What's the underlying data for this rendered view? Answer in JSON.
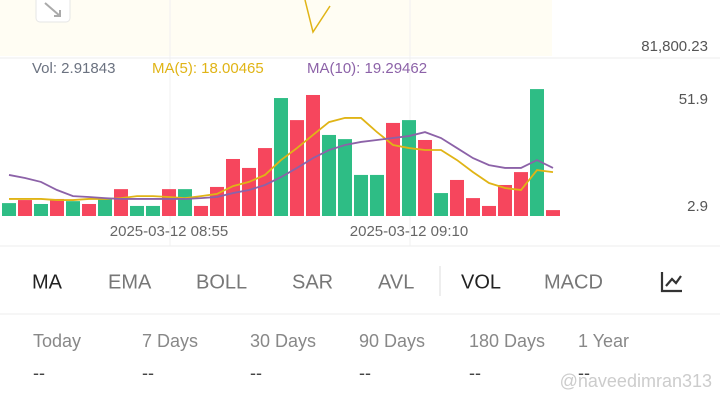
{
  "price_label": "81,800.23",
  "chart_data": {
    "type": "bar",
    "categories": [
      null,
      null,
      null,
      null,
      null,
      null,
      null,
      null,
      null,
      null,
      "2025-03-12 08:55",
      null,
      null,
      null,
      null,
      null,
      null,
      null,
      null,
      null,
      null,
      null,
      null,
      null,
      null,
      "2025-03-12 09:10",
      null,
      null,
      null,
      null,
      null,
      null,
      null,
      null,
      null
    ],
    "ylim": [
      -1.2,
      69.3
    ],
    "yticks": [
      2.9,
      51.9
    ],
    "series": [
      {
        "name": "Vol: 2.91843",
        "type": "bar",
        "color": "#6b7280",
        "values": [
          4.7,
          6.1,
          4.3,
          6.6,
          5.6,
          4.3,
          7.0,
          11.1,
          3.4,
          3.4,
          11.1,
          11.1,
          3.4,
          12.1,
          24.9,
          20.8,
          29.9,
          52.8,
          42.7,
          54.2,
          35.9,
          34.0,
          17.6,
          17.6,
          41.4,
          42.7,
          33.6,
          9.3,
          15.3,
          7.0,
          3.4,
          13.0,
          18.9,
          56.9,
          1.5
        ],
        "colors": [
          "#2ebd85",
          "#f6465d",
          "#2ebd85",
          "#f6465d",
          "#2ebd85",
          "#f6465d",
          "#2ebd85",
          "#f6465d",
          "#2ebd85",
          "#2ebd85",
          "#f6465d",
          "#2ebd85",
          "#f6465d",
          "#f6465d",
          "#f6465d",
          "#f6465d",
          "#f6465d",
          "#2ebd85",
          "#f6465d",
          "#f6465d",
          "#2ebd85",
          "#2ebd85",
          "#2ebd85",
          "#2ebd85",
          "#f6465d",
          "#2ebd85",
          "#f6465d",
          "#2ebd85",
          "#f6465d",
          "#f6465d",
          "#f6465d",
          "#f6465d",
          "#f6465d",
          "#2ebd85",
          "#f6465d"
        ]
      },
      {
        "name": "MA(5): 18.00465",
        "type": "line",
        "color": "#e0b416",
        "values": [
          6.6,
          6.6,
          6.6,
          6.1,
          6.1,
          6.6,
          6.6,
          7.0,
          7.9,
          7.9,
          7.5,
          7.0,
          7.9,
          8.9,
          12.5,
          14.4,
          17.6,
          24.4,
          29.9,
          35.9,
          41.8,
          43.7,
          43.7,
          37.2,
          31.3,
          29.9,
          29.0,
          29.0,
          24.4,
          18.9,
          13.9,
          11.6,
          10.7,
          19.8,
          18.9
        ]
      },
      {
        "name": "MA(10): 19.29462",
        "type": "line",
        "color": "#8c62a8",
        "values": [
          17.6,
          16.2,
          14.4,
          10.7,
          7.9,
          7.5,
          7.0,
          6.6,
          6.6,
          6.6,
          6.6,
          6.6,
          7.0,
          7.5,
          9.3,
          10.7,
          13.0,
          16.6,
          20.8,
          25.3,
          29.0,
          31.3,
          32.7,
          33.6,
          34.5,
          35.4,
          37.2,
          34.5,
          29.9,
          25.3,
          22.1,
          20.8,
          20.8,
          24.4,
          20.8
        ]
      }
    ]
  },
  "tabs": [
    "MA",
    "EMA",
    "BOLL",
    "SAR",
    "AVL"
  ],
  "tabs_right": [
    "VOL",
    "MACD"
  ],
  "periods": [
    {
      "label": "Today",
      "value": "--"
    },
    {
      "label": "7 Days",
      "value": "--"
    },
    {
      "label": "30 Days",
      "value": "--"
    },
    {
      "label": "90 Days",
      "value": "--"
    },
    {
      "label": "180 Days",
      "value": "--"
    },
    {
      "label": "1 Year",
      "value": "--"
    }
  ],
  "watermark": "@naveedimran313"
}
